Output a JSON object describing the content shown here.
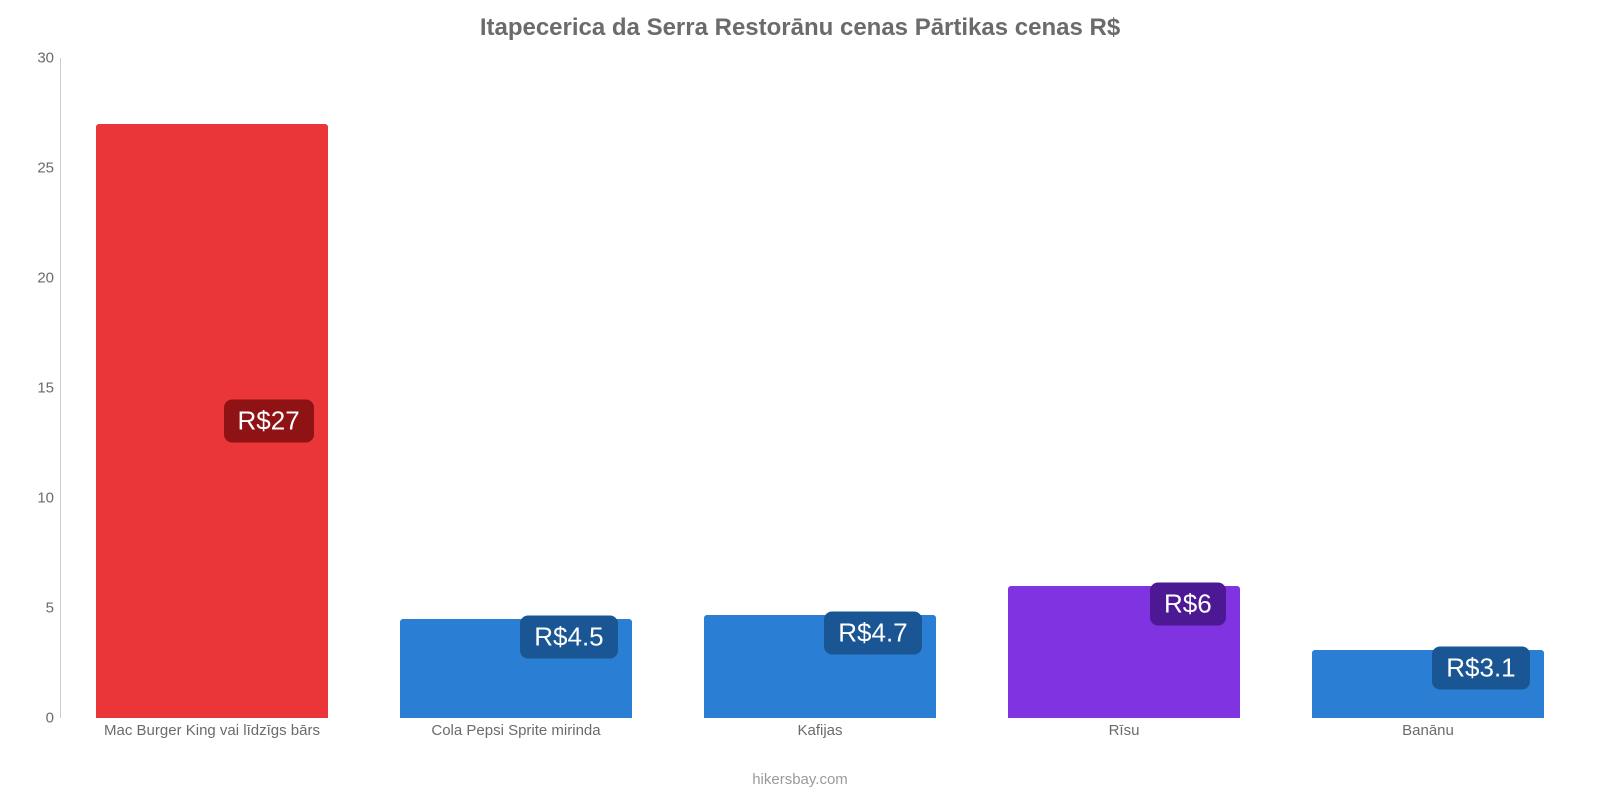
{
  "chart": {
    "type": "bar",
    "title": "Itapecerica da Serra Restorānu cenas Pārtikas cenas R$",
    "title_color": "#6b6b6b",
    "title_fontsize": 24,
    "background_color": "#ffffff",
    "axis_color": "#cfcfcf",
    "tick_color": "#6b6b6b",
    "tick_fontsize": 15,
    "ylim_min": 0,
    "ylim_max": 30,
    "ytick_step": 5,
    "yticks": [
      "0",
      "5",
      "10",
      "15",
      "20",
      "25",
      "30"
    ],
    "bar_width_pct": 76,
    "badge_fontsize": 26,
    "badge_text_color": "#ffffff",
    "badge_radius": 8,
    "categories": [
      "Mac Burger King vai līdzīgs bārs",
      "Cola Pepsi Sprite mirinda",
      "Kafijas",
      "Rīsu",
      "Banānu"
    ],
    "values": [
      27,
      4.5,
      4.7,
      6,
      3.1
    ],
    "value_labels": [
      "R$27",
      "R$4.5",
      "R$4.7",
      "R$6",
      "R$3.1"
    ],
    "bar_colors": [
      "#eb3639",
      "#2a7fd4",
      "#2a7fd4",
      "#8033e0",
      "#2a7fd4"
    ],
    "badge_colors": [
      "#8f1315",
      "#1a5694",
      "#1a5694",
      "#4c1894",
      "#1a5694"
    ],
    "footer": "hikersbay.com",
    "footer_color": "#9a9a9a"
  }
}
